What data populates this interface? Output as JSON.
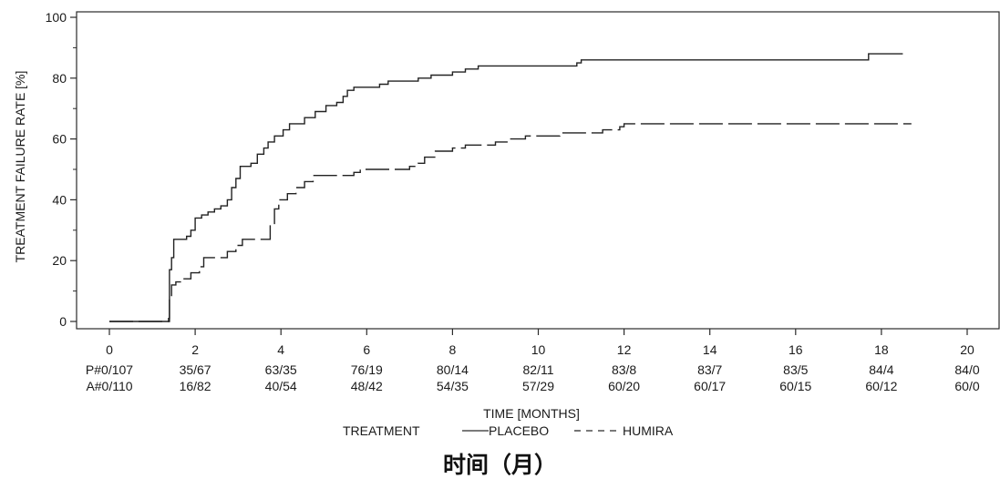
{
  "chart_data": {
    "type": "line",
    "step": true,
    "ylabel": "TREATMENT FAILURE RATE [%]",
    "xlabel": "TIME [MONTHS]",
    "xlim": [
      0,
      20
    ],
    "ylim": [
      0,
      100
    ],
    "x_ticks": [
      0,
      2,
      4,
      6,
      8,
      10,
      12,
      14,
      16,
      18,
      20
    ],
    "y_ticks": [
      0,
      20,
      40,
      60,
      80,
      100
    ],
    "grid": false,
    "legend": {
      "title": "TREATMENT",
      "position": "bottom-center",
      "entries": [
        {
          "label": "PLACEBO",
          "style": "solid"
        },
        {
          "label": "HUMIRA",
          "style": "dashed"
        }
      ]
    },
    "series": [
      {
        "name": "PLACEBO",
        "style": "solid",
        "points": [
          [
            0,
            0
          ],
          [
            1.35,
            0
          ],
          [
            1.38,
            1
          ],
          [
            1.4,
            17
          ],
          [
            1.45,
            21
          ],
          [
            1.5,
            27
          ],
          [
            1.7,
            27
          ],
          [
            1.8,
            28
          ],
          [
            1.9,
            30
          ],
          [
            2.0,
            34
          ],
          [
            2.15,
            35
          ],
          [
            2.3,
            36
          ],
          [
            2.45,
            37
          ],
          [
            2.6,
            38
          ],
          [
            2.75,
            40
          ],
          [
            2.85,
            44
          ],
          [
            2.95,
            47
          ],
          [
            3.05,
            51
          ],
          [
            3.3,
            52
          ],
          [
            3.45,
            55
          ],
          [
            3.6,
            57
          ],
          [
            3.7,
            59
          ],
          [
            3.85,
            61
          ],
          [
            4.05,
            63
          ],
          [
            4.2,
            65
          ],
          [
            4.45,
            65
          ],
          [
            4.55,
            67
          ],
          [
            4.8,
            69
          ],
          [
            5.05,
            71
          ],
          [
            5.3,
            72
          ],
          [
            5.45,
            74
          ],
          [
            5.55,
            76
          ],
          [
            5.7,
            77
          ],
          [
            6.1,
            77
          ],
          [
            6.3,
            78
          ],
          [
            6.5,
            79
          ],
          [
            7.2,
            80
          ],
          [
            7.5,
            81
          ],
          [
            8.0,
            82
          ],
          [
            8.3,
            83
          ],
          [
            8.6,
            84
          ],
          [
            10.9,
            85
          ],
          [
            11.0,
            86
          ],
          [
            17.6,
            86
          ],
          [
            17.7,
            88
          ],
          [
            18.5,
            88
          ]
        ]
      },
      {
        "name": "HUMIRA",
        "style": "dashed",
        "points": [
          [
            0,
            0
          ],
          [
            1.38,
            0
          ],
          [
            1.4,
            8
          ],
          [
            1.45,
            12
          ],
          [
            1.55,
            13
          ],
          [
            1.7,
            14
          ],
          [
            1.9,
            16
          ],
          [
            2.1,
            18
          ],
          [
            2.2,
            21
          ],
          [
            2.6,
            21
          ],
          [
            2.75,
            23
          ],
          [
            2.95,
            25
          ],
          [
            3.1,
            27
          ],
          [
            3.6,
            27
          ],
          [
            3.75,
            32
          ],
          [
            3.85,
            37
          ],
          [
            3.95,
            40
          ],
          [
            4.15,
            42
          ],
          [
            4.35,
            44
          ],
          [
            4.55,
            46
          ],
          [
            4.75,
            48
          ],
          [
            5.7,
            49
          ],
          [
            5.85,
            50
          ],
          [
            6.5,
            50
          ],
          [
            7.0,
            51
          ],
          [
            7.2,
            52
          ],
          [
            7.35,
            54
          ],
          [
            7.6,
            56
          ],
          [
            8.0,
            57
          ],
          [
            8.3,
            58
          ],
          [
            9.0,
            59
          ],
          [
            9.3,
            60
          ],
          [
            9.7,
            61
          ],
          [
            10.5,
            62
          ],
          [
            11.5,
            63
          ],
          [
            11.9,
            64
          ],
          [
            12.0,
            65
          ],
          [
            18.7,
            65
          ]
        ]
      }
    ],
    "at_risk": {
      "rows": [
        {
          "label": "P#",
          "values": [
            "0/107",
            "35/67",
            "63/35",
            "76/19",
            "80/14",
            "82/11",
            "83/8",
            "83/7",
            "83/5",
            "84/4",
            "84/0"
          ]
        },
        {
          "label": "A#",
          "values": [
            "0/110",
            "16/82",
            "40/54",
            "48/42",
            "54/35",
            "57/29",
            "60/20",
            "60/17",
            "60/15",
            "60/12",
            "60/0"
          ]
        }
      ]
    }
  },
  "caption": "时间（月）"
}
